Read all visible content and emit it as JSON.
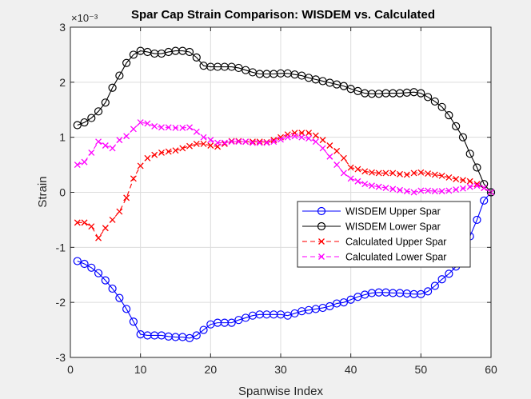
{
  "colors": {
    "figure_bg": "#f0f0f0",
    "axes_bg": "#ffffff",
    "grid": "#dcdcdc",
    "axis": "#262626"
  },
  "chart_data": {
    "type": "line",
    "title": "Spar Cap Strain Comparison: WISDEM vs. Calculated",
    "xlabel": "Spanwise Index",
    "ylabel": "Strain",
    "exponent_label": "×10⁻³",
    "xlim": [
      0,
      60
    ],
    "ylim": [
      -3,
      3
    ],
    "xticks": [
      0,
      10,
      20,
      30,
      40,
      50,
      60
    ],
    "yticks": [
      -3,
      -2,
      -1,
      0,
      1,
      2,
      3
    ],
    "grid": true,
    "legend_position": "center-right",
    "x": [
      1,
      2,
      3,
      4,
      5,
      6,
      7,
      8,
      9,
      10,
      11,
      12,
      13,
      14,
      15,
      16,
      17,
      18,
      19,
      20,
      21,
      22,
      23,
      24,
      25,
      26,
      27,
      28,
      29,
      30,
      31,
      32,
      33,
      34,
      35,
      36,
      37,
      38,
      39,
      40,
      41,
      42,
      43,
      44,
      45,
      46,
      47,
      48,
      49,
      50,
      51,
      52,
      53,
      54,
      55,
      56,
      57,
      58,
      59,
      60
    ],
    "series": [
      {
        "name": "WISDEM Upper Spar",
        "color": "#0000ff",
        "line": "solid",
        "marker": "circle",
        "values": [
          -1.25,
          -1.3,
          -1.37,
          -1.47,
          -1.6,
          -1.75,
          -1.92,
          -2.12,
          -2.35,
          -2.58,
          -2.6,
          -2.6,
          -2.6,
          -2.62,
          -2.63,
          -2.63,
          -2.65,
          -2.6,
          -2.5,
          -2.4,
          -2.37,
          -2.37,
          -2.37,
          -2.32,
          -2.28,
          -2.24,
          -2.22,
          -2.22,
          -2.22,
          -2.22,
          -2.24,
          -2.2,
          -2.16,
          -2.14,
          -2.12,
          -2.1,
          -2.07,
          -2.02,
          -2.0,
          -1.95,
          -1.9,
          -1.86,
          -1.83,
          -1.82,
          -1.82,
          -1.83,
          -1.83,
          -1.84,
          -1.85,
          -1.85,
          -1.8,
          -1.7,
          -1.58,
          -1.48,
          -1.35,
          -1.05,
          -0.8,
          -0.5,
          -0.15,
          0.0
        ]
      },
      {
        "name": "WISDEM Lower Spar",
        "color": "#000000",
        "line": "solid",
        "marker": "circle",
        "values": [
          1.22,
          1.27,
          1.35,
          1.47,
          1.63,
          1.9,
          2.12,
          2.35,
          2.5,
          2.57,
          2.55,
          2.52,
          2.52,
          2.55,
          2.57,
          2.57,
          2.55,
          2.45,
          2.3,
          2.28,
          2.28,
          2.28,
          2.28,
          2.26,
          2.22,
          2.18,
          2.15,
          2.15,
          2.15,
          2.16,
          2.16,
          2.14,
          2.12,
          2.08,
          2.05,
          2.02,
          1.99,
          1.96,
          1.93,
          1.88,
          1.84,
          1.8,
          1.79,
          1.79,
          1.8,
          1.8,
          1.8,
          1.81,
          1.82,
          1.8,
          1.73,
          1.65,
          1.55,
          1.4,
          1.2,
          1.0,
          0.7,
          0.45,
          0.15,
          0.0
        ]
      },
      {
        "name": "Calculated Upper Spar",
        "color": "#ff0000",
        "line": "dashed",
        "marker": "x",
        "values": [
          -0.55,
          -0.55,
          -0.62,
          -0.83,
          -0.65,
          -0.5,
          -0.35,
          -0.1,
          0.25,
          0.48,
          0.62,
          0.68,
          0.72,
          0.74,
          0.76,
          0.8,
          0.84,
          0.88,
          0.88,
          0.85,
          0.83,
          0.88,
          0.93,
          0.93,
          0.92,
          0.92,
          0.92,
          0.91,
          0.95,
          1.0,
          1.05,
          1.08,
          1.08,
          1.08,
          1.03,
          0.95,
          0.85,
          0.75,
          0.62,
          0.45,
          0.42,
          0.38,
          0.36,
          0.35,
          0.35,
          0.35,
          0.33,
          0.32,
          0.35,
          0.36,
          0.34,
          0.32,
          0.3,
          0.27,
          0.24,
          0.22,
          0.2,
          0.15,
          0.08,
          0.0
        ]
      },
      {
        "name": "Calculated Lower Spar",
        "color": "#ff00ff",
        "line": "dashed",
        "marker": "x",
        "values": [
          0.5,
          0.55,
          0.72,
          0.92,
          0.85,
          0.8,
          0.95,
          1.02,
          1.15,
          1.27,
          1.25,
          1.2,
          1.18,
          1.18,
          1.17,
          1.17,
          1.18,
          1.1,
          1.0,
          0.95,
          0.9,
          0.9,
          0.92,
          0.92,
          0.92,
          0.9,
          0.9,
          0.9,
          0.92,
          0.96,
          1.0,
          1.02,
          1.0,
          0.98,
          0.92,
          0.8,
          0.65,
          0.5,
          0.35,
          0.25,
          0.2,
          0.15,
          0.12,
          0.1,
          0.08,
          0.06,
          0.04,
          0.02,
          0.0,
          0.03,
          0.03,
          0.02,
          0.02,
          0.03,
          0.05,
          0.07,
          0.1,
          0.12,
          0.08,
          0.0
        ]
      }
    ]
  }
}
